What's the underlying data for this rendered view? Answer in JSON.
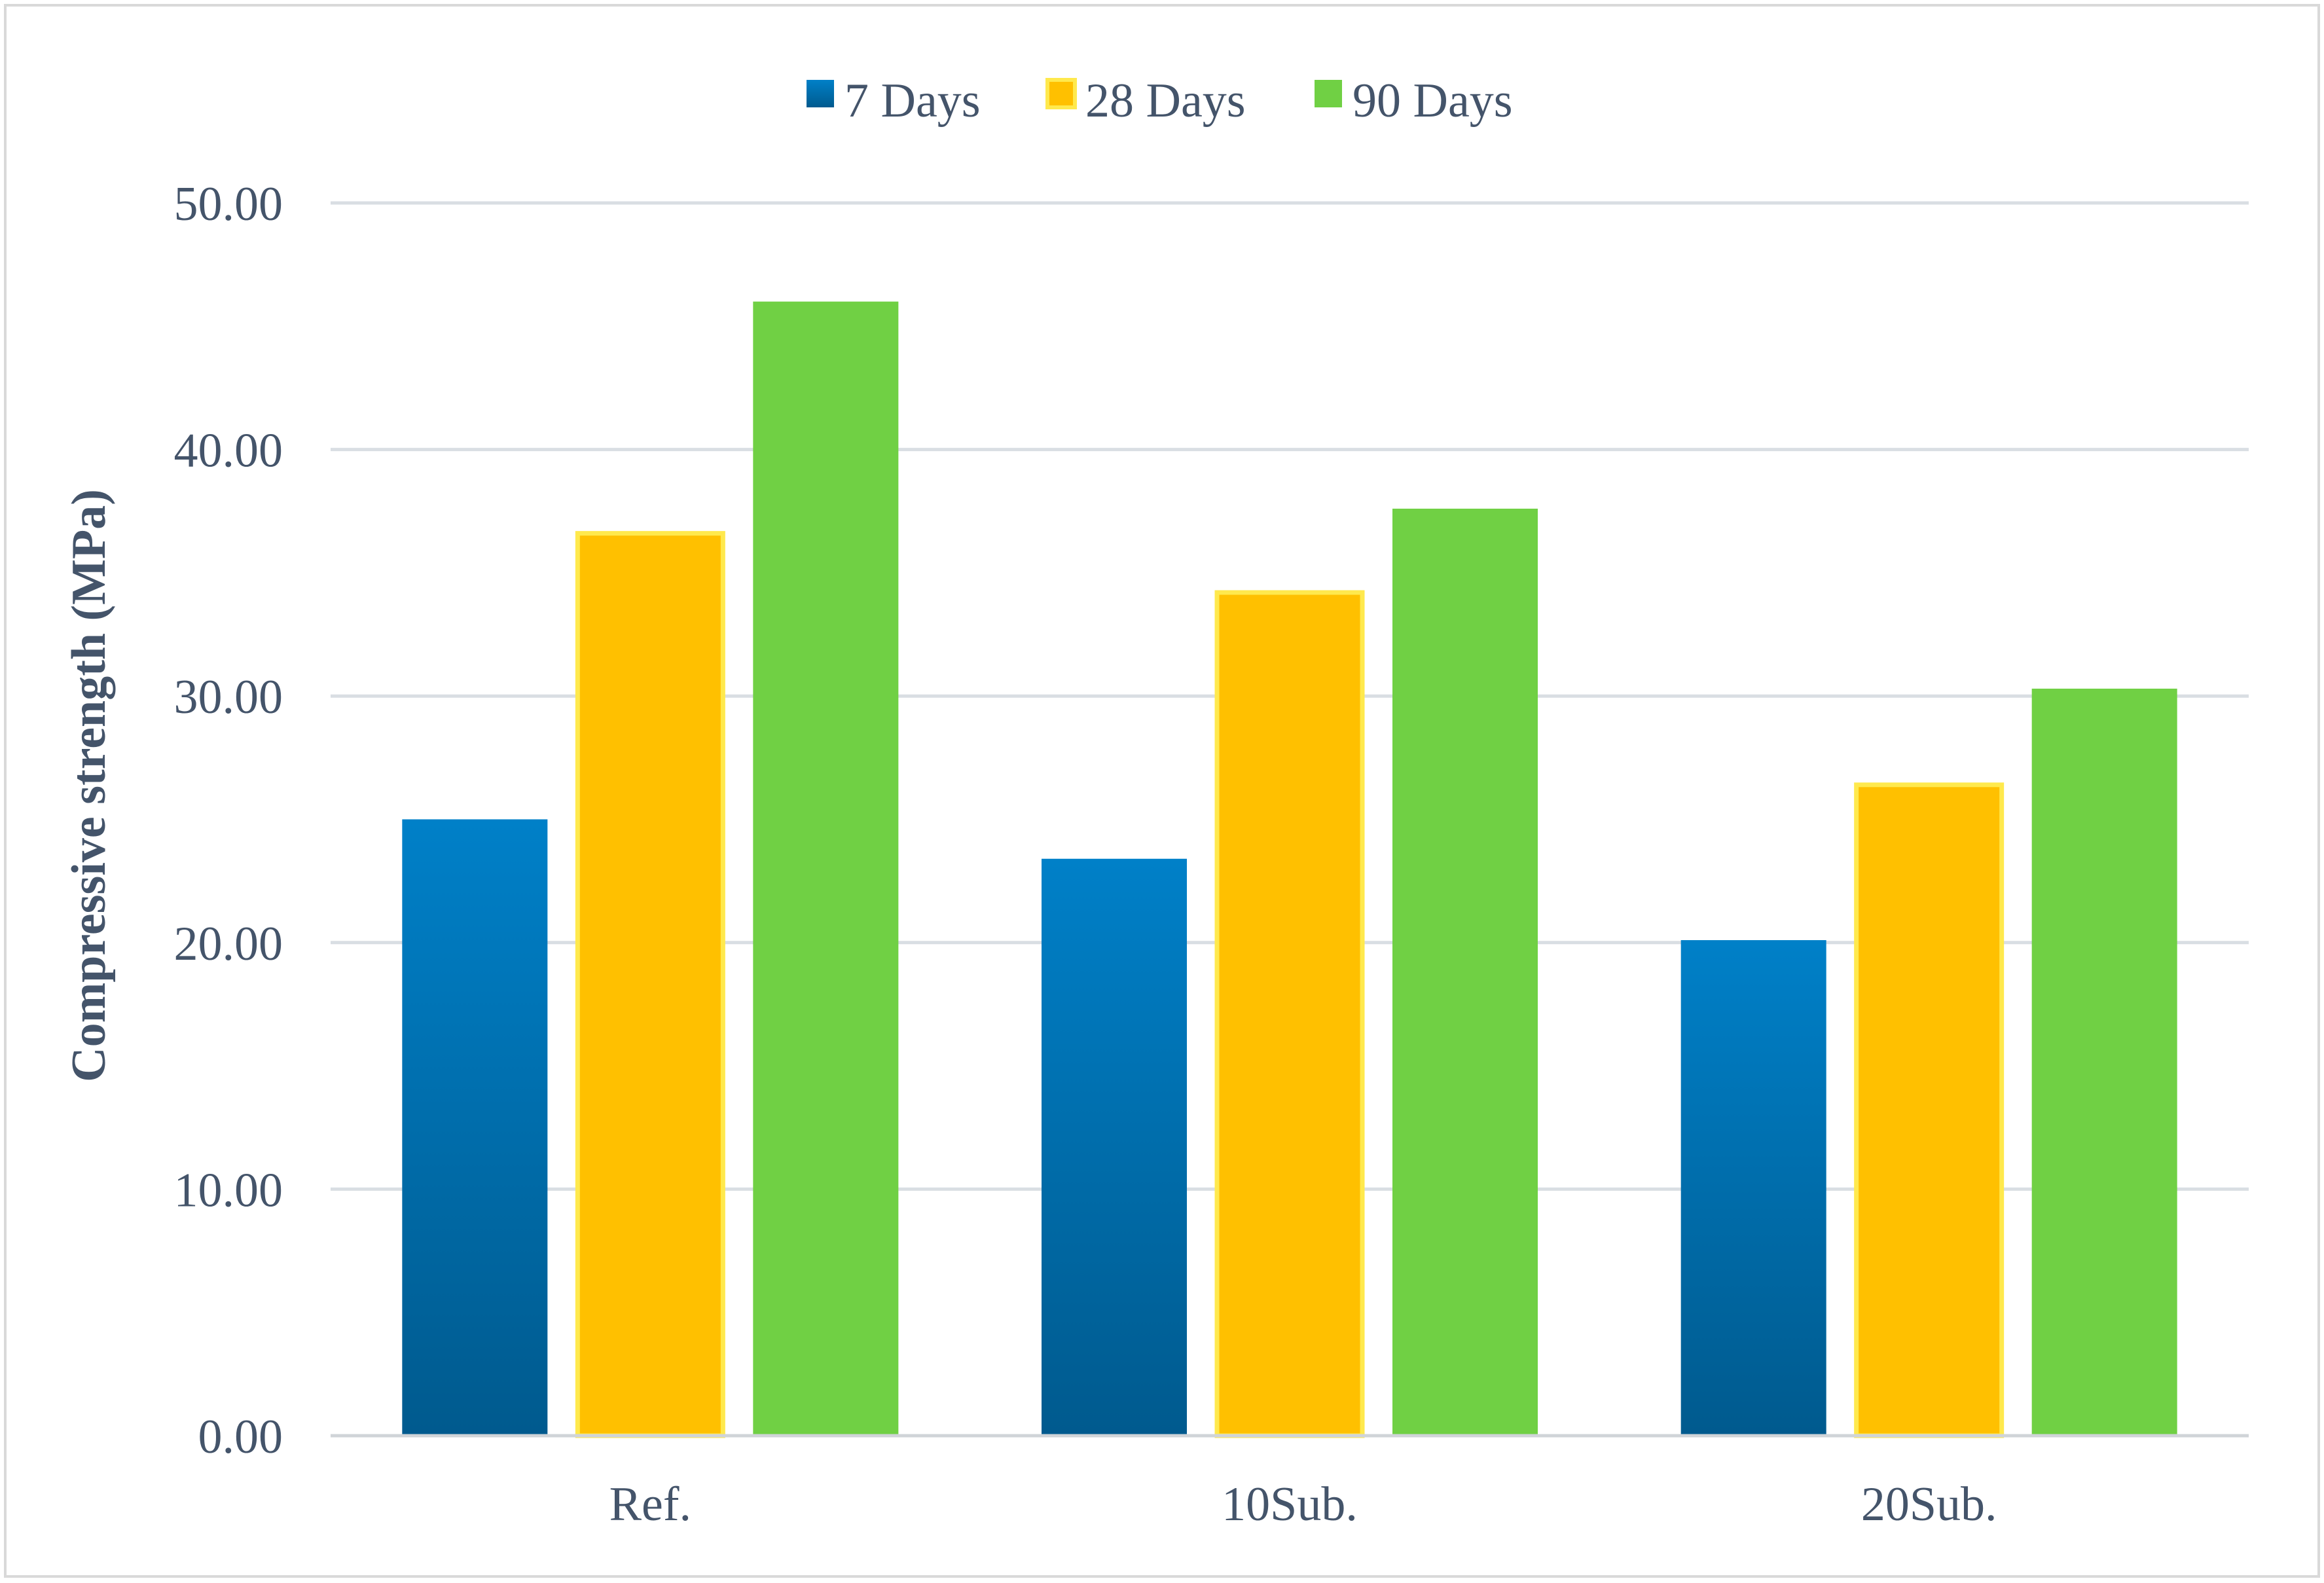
{
  "chart_data": {
    "type": "bar",
    "categories": [
      "Ref.",
      "10Sub.",
      "20Sub."
    ],
    "series": [
      {
        "name": "7 Days",
        "values": [
          25.0,
          23.4,
          20.1
        ],
        "color": "#0a6aa8"
      },
      {
        "name": "28 Days",
        "values": [
          36.6,
          34.2,
          26.4
        ],
        "color": "#ffc000"
      },
      {
        "name": "90 Days",
        "values": [
          46.0,
          37.6,
          30.3
        ],
        "color": "#70d044"
      }
    ],
    "title": "",
    "xlabel": "",
    "ylabel": "Compressive strength (MPa)",
    "ylim": [
      0,
      50
    ],
    "yticks": [
      0,
      10,
      20,
      30,
      40,
      50
    ],
    "ytick_labels": [
      "0.00",
      "10.00",
      "20.00",
      "30.00",
      "40.00",
      "50.00"
    ],
    "grid": true,
    "legend": "top-center"
  }
}
